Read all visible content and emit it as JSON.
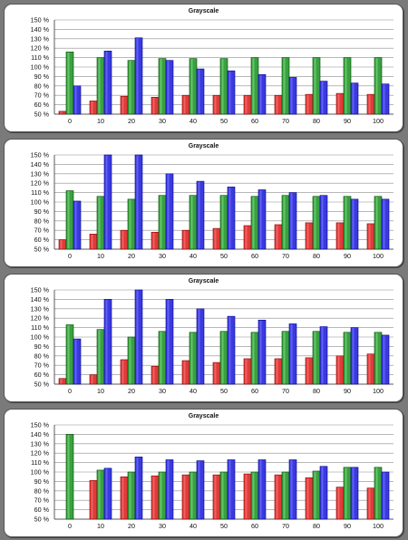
{
  "chart_data": [
    {
      "type": "bar",
      "title": "Grayscale",
      "categories": [
        "0",
        "10",
        "20",
        "30",
        "40",
        "50",
        "60",
        "70",
        "80",
        "90",
        "100"
      ],
      "y_ticks": [
        "50 %",
        "60 %",
        "70 %",
        "80 %",
        "90 %",
        "100 %",
        "110 %",
        "120 %",
        "130 %",
        "140 %",
        "150 %"
      ],
      "ylim": [
        50,
        150
      ],
      "grid": true,
      "series": [
        {
          "color": "#e03a3a",
          "values": [
            53,
            64,
            69,
            68,
            70,
            70,
            70,
            70,
            71,
            72,
            71
          ]
        },
        {
          "color": "#3aa040",
          "values": [
            116,
            110,
            107,
            109,
            109,
            109,
            110,
            110,
            110,
            110,
            110
          ]
        },
        {
          "color": "#3a3ae0",
          "values": [
            80,
            117,
            131,
            107,
            98,
            96,
            92,
            89,
            85,
            83,
            82
          ]
        }
      ]
    },
    {
      "type": "bar",
      "title": "Grayscale",
      "categories": [
        "0",
        "10",
        "20",
        "30",
        "40",
        "50",
        "60",
        "70",
        "80",
        "90",
        "100"
      ],
      "y_ticks": [
        "50 %",
        "60 %",
        "70 %",
        "80 %",
        "90 %",
        "100 %",
        "110 %",
        "120 %",
        "130 %",
        "140 %",
        "150 %"
      ],
      "ylim": [
        50,
        150
      ],
      "grid": true,
      "series": [
        {
          "color": "#e03a3a",
          "values": [
            60,
            66,
            70,
            68,
            70,
            72,
            75,
            76,
            78,
            78,
            77
          ]
        },
        {
          "color": "#3aa040",
          "values": [
            112,
            106,
            103,
            107,
            107,
            107,
            106,
            107,
            106,
            106,
            106
          ]
        },
        {
          "color": "#3a3ae0",
          "values": [
            101,
            150,
            150,
            130,
            122,
            116,
            113,
            110,
            107,
            103,
            103
          ]
        }
      ]
    },
    {
      "type": "bar",
      "title": "Grayscale",
      "categories": [
        "0",
        "10",
        "20",
        "30",
        "40",
        "50",
        "60",
        "70",
        "80",
        "90",
        "100"
      ],
      "y_ticks": [
        "50 %",
        "60 %",
        "70 %",
        "80 %",
        "90 %",
        "100 %",
        "110 %",
        "120 %",
        "130 %",
        "140 %",
        "150 %"
      ],
      "ylim": [
        50,
        150
      ],
      "grid": true,
      "series": [
        {
          "color": "#e03a3a",
          "values": [
            56,
            60,
            76,
            69,
            75,
            73,
            77,
            77,
            78,
            80,
            82
          ]
        },
        {
          "color": "#3aa040",
          "values": [
            113,
            108,
            100,
            106,
            105,
            106,
            105,
            106,
            106,
            105,
            105
          ]
        },
        {
          "color": "#3a3ae0",
          "values": [
            98,
            140,
            150,
            140,
            130,
            122,
            118,
            114,
            111,
            110,
            102
          ]
        }
      ]
    },
    {
      "type": "bar",
      "title": "Grayscale",
      "categories": [
        "0",
        "10",
        "20",
        "30",
        "40",
        "50",
        "60",
        "70",
        "80",
        "90",
        "100"
      ],
      "y_ticks": [
        "50 %",
        "60 %",
        "70 %",
        "80 %",
        "90 %",
        "100 %",
        "110 %",
        "120 %",
        "130 %",
        "140 %",
        "150 %"
      ],
      "ylim": [
        50,
        150
      ],
      "grid": true,
      "series": [
        {
          "color": "#e03a3a",
          "values": [
            50,
            91,
            95,
            96,
            97,
            97,
            98,
            97,
            94,
            84,
            83
          ]
        },
        {
          "color": "#3aa040",
          "values": [
            140,
            102,
            100,
            100,
            100,
            100,
            100,
            100,
            101,
            105,
            105
          ]
        },
        {
          "color": "#3a3ae0",
          "values": [
            50,
            104,
            116,
            113,
            112,
            113,
            113,
            113,
            106,
            105,
            100
          ]
        }
      ]
    }
  ]
}
